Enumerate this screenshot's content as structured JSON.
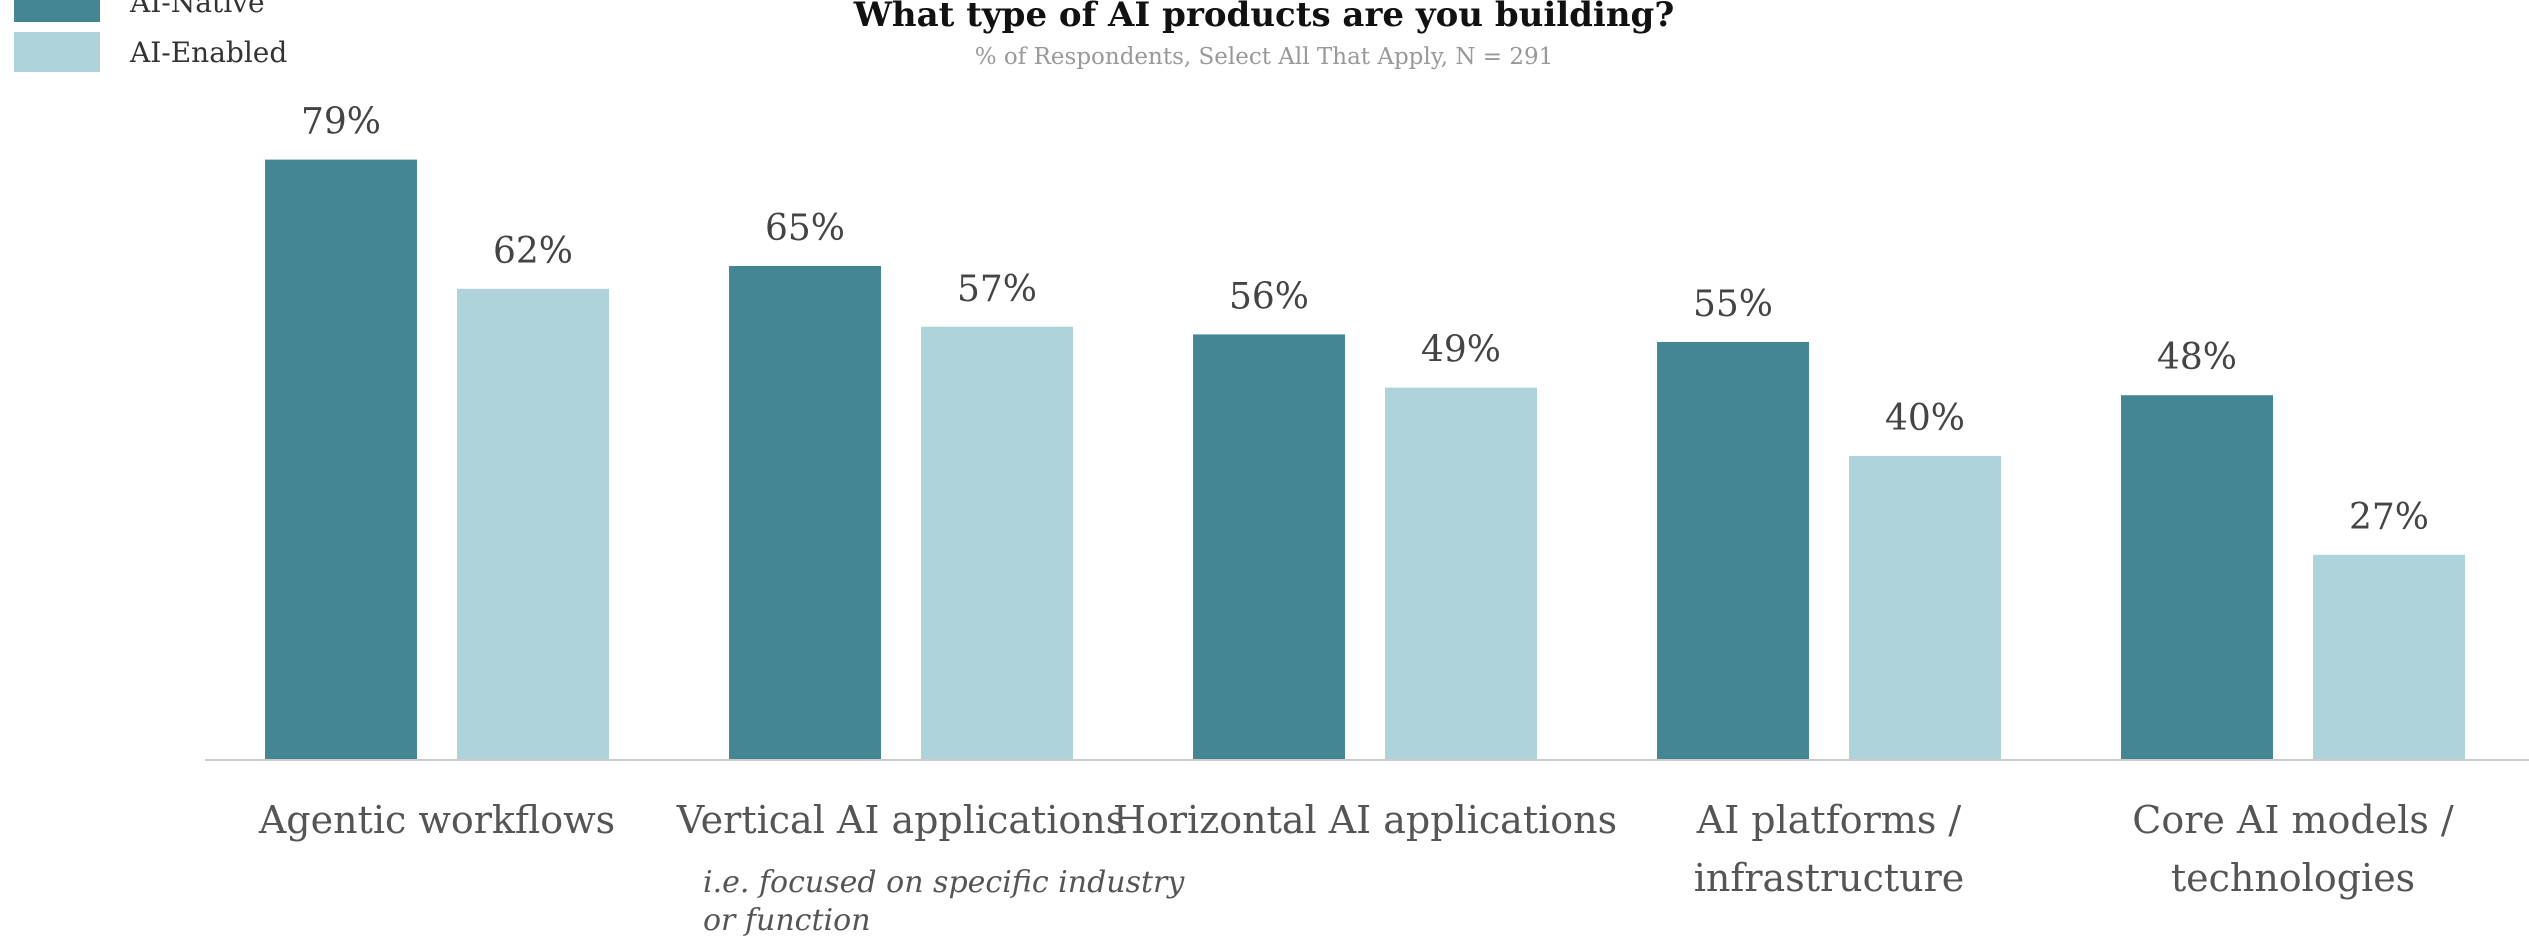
{
  "chart_data": {
    "type": "bar",
    "title": "What type of AI products are you building?",
    "subtitle": "% of Respondents, Select All That Apply, N = 291",
    "xlabel": "",
    "ylabel": "",
    "ylim": [
      0,
      100
    ],
    "grid": false,
    "legend_position": "top-left",
    "categories": [
      "Agentic workflows",
      "Vertical AI applications",
      "Horizontal AI applications",
      "AI platforms / infrastructure",
      "Core AI models / technologies"
    ],
    "category_label_lines": [
      [
        "Agentic workflows"
      ],
      [
        "Vertical AI applications"
      ],
      [
        "Horizontal AI applications"
      ],
      [
        "AI platforms /",
        "infrastructure"
      ],
      [
        "Core AI models /",
        "technologies"
      ]
    ],
    "category_notes": [
      "",
      "i.e. focused on specific industry or function",
      "",
      "",
      ""
    ],
    "category_note_lines": [
      [],
      [
        "i.e. focused on specific industry",
        "or function"
      ],
      [],
      [],
      []
    ],
    "series": [
      {
        "name": "AI-Native",
        "color": "#448693",
        "values": [
          79,
          65,
          56,
          55,
          48
        ]
      },
      {
        "name": "AI-Enabled",
        "color": "#afd3db",
        "values": [
          62,
          57,
          49,
          40,
          27
        ]
      }
    ],
    "value_suffix": "%"
  },
  "colors": {
    "text": "#444444",
    "axis": "#cccccc"
  }
}
